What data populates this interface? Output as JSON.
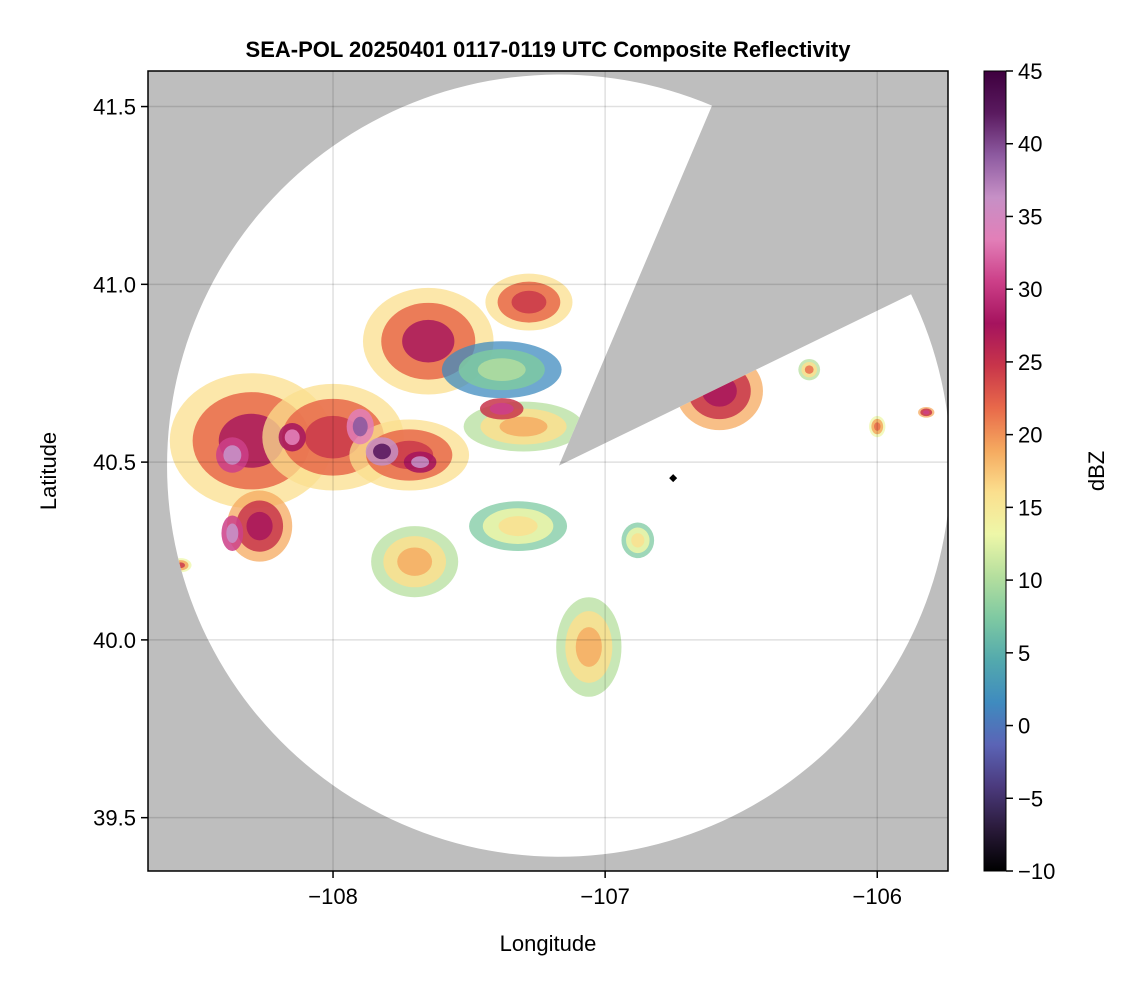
{
  "chart_data": {
    "type": "heatmap",
    "title": "SEA-POL 20250401 0117-0119 UTC Composite Reflectivity",
    "xlabel": "Longitude",
    "ylabel": "Latitude",
    "xlim": [
      -108.68,
      -105.74
    ],
    "ylim": [
      39.35,
      41.6
    ],
    "xticks": [
      -108,
      -107,
      -106
    ],
    "xtick_labels": [
      "−108",
      "−107",
      "−106"
    ],
    "yticks": [
      39.5,
      40.0,
      40.5,
      41.0,
      41.5
    ],
    "ytick_labels": [
      "39.5",
      "40.0",
      "40.5",
      "41.0",
      "41.5"
    ],
    "grid": true,
    "background_color": "#bebebe",
    "coverage_color": "#ffffff",
    "radar": {
      "lon": -107.17,
      "lat": 40.49,
      "range_lon": 1.44,
      "range_lat": 1.1,
      "blocked_sector_deg": [
        23,
        64
      ]
    },
    "site_marker": {
      "lon": -106.75,
      "lat": 40.455,
      "color": "#000000"
    },
    "colorbar": {
      "label": "dBZ",
      "min": -10,
      "max": 45,
      "ticks": [
        -10,
        -5,
        0,
        5,
        10,
        15,
        20,
        25,
        30,
        35,
        40,
        45
      ],
      "tick_labels": [
        "−10",
        "−5",
        "0",
        "5",
        "10",
        "15",
        "20",
        "25",
        "30",
        "35",
        "40",
        "45"
      ],
      "colors": [
        "#000000",
        "#2a1a3a",
        "#4b3a7d",
        "#5b64b6",
        "#3f8bbf",
        "#53a9ad",
        "#7ec9a2",
        "#b5df9e",
        "#eef7a8",
        "#fbdf8e",
        "#f5a95f",
        "#e8694a",
        "#c8354a",
        "#a5135e",
        "#cc3f88",
        "#e27fb8",
        "#c690c6",
        "#8d5aa0",
        "#5a1a5f",
        "#3e003e"
      ]
    },
    "echoes": [
      {
        "name": "west-core",
        "lon": -108.3,
        "lat": 40.56,
        "rx": 0.3,
        "ry": 0.19,
        "dbz": 23
      },
      {
        "name": "west-mid",
        "lon": -108.0,
        "lat": 40.57,
        "rx": 0.26,
        "ry": 0.15,
        "dbz": 22
      },
      {
        "name": "west-south",
        "lon": -108.27,
        "lat": 40.32,
        "rx": 0.12,
        "ry": 0.1,
        "dbz": 24
      },
      {
        "name": "central-band",
        "lon": -107.72,
        "lat": 40.52,
        "rx": 0.22,
        "ry": 0.1,
        "dbz": 21
      },
      {
        "name": "north-cell",
        "lon": -107.65,
        "lat": 40.84,
        "rx": 0.24,
        "ry": 0.15,
        "dbz": 23
      },
      {
        "name": "north-cell-2",
        "lon": -107.28,
        "lat": 40.95,
        "rx": 0.16,
        "ry": 0.08,
        "dbz": 22
      },
      {
        "name": "blue-area",
        "lon": -107.38,
        "lat": 40.76,
        "rx": 0.22,
        "ry": 0.08,
        "dbz": 7
      },
      {
        "name": "blue-band-south",
        "lon": -107.3,
        "lat": 40.6,
        "rx": 0.22,
        "ry": 0.07,
        "dbz": 16
      },
      {
        "name": "south-cell",
        "lon": -107.7,
        "lat": 40.22,
        "rx": 0.16,
        "ry": 0.1,
        "dbz": 15
      },
      {
        "name": "south-central",
        "lon": -107.32,
        "lat": 40.32,
        "rx": 0.18,
        "ry": 0.07,
        "dbz": 13
      },
      {
        "name": "south-blob",
        "lon": -107.06,
        "lat": 39.98,
        "rx": 0.12,
        "ry": 0.14,
        "dbz": 16
      },
      {
        "name": "east-cell",
        "lon": -106.58,
        "lat": 40.7,
        "rx": 0.16,
        "ry": 0.11,
        "dbz": 24
      },
      {
        "name": "east-small-1",
        "lon": -106.88,
        "lat": 40.28,
        "rx": 0.06,
        "ry": 0.05,
        "dbz": 13
      },
      {
        "name": "east-small-2",
        "lon": -106.25,
        "lat": 40.76,
        "rx": 0.04,
        "ry": 0.03,
        "dbz": 17
      },
      {
        "name": "east-small-3",
        "lon": -106.0,
        "lat": 40.6,
        "rx": 0.03,
        "ry": 0.03,
        "dbz": 18
      },
      {
        "name": "east-small-4",
        "lon": -105.82,
        "lat": 40.64,
        "rx": 0.03,
        "ry": 0.015,
        "dbz": 26
      },
      {
        "name": "far-west-small",
        "lon": -108.56,
        "lat": 40.21,
        "rx": 0.04,
        "ry": 0.02,
        "dbz": 20
      }
    ],
    "hot_cores": [
      {
        "name": "core-1",
        "lon": -107.9,
        "lat": 40.6,
        "rx": 0.05,
        "ry": 0.05,
        "dbz": 37
      },
      {
        "name": "core-2",
        "lon": -107.82,
        "lat": 40.53,
        "rx": 0.06,
        "ry": 0.04,
        "dbz": 40
      },
      {
        "name": "core-3",
        "lon": -108.37,
        "lat": 40.52,
        "rx": 0.06,
        "ry": 0.05,
        "dbz": 34
      },
      {
        "name": "core-4",
        "lon": -108.37,
        "lat": 40.3,
        "rx": 0.04,
        "ry": 0.05,
        "dbz": 35
      },
      {
        "name": "core-5",
        "lon": -108.15,
        "lat": 40.57,
        "rx": 0.05,
        "ry": 0.04,
        "dbz": 32
      },
      {
        "name": "core-6",
        "lon": -107.68,
        "lat": 40.5,
        "rx": 0.06,
        "ry": 0.03,
        "dbz": 33
      },
      {
        "name": "core-7",
        "lon": -107.38,
        "lat": 40.65,
        "rx": 0.08,
        "ry": 0.03,
        "dbz": 28
      }
    ]
  }
}
